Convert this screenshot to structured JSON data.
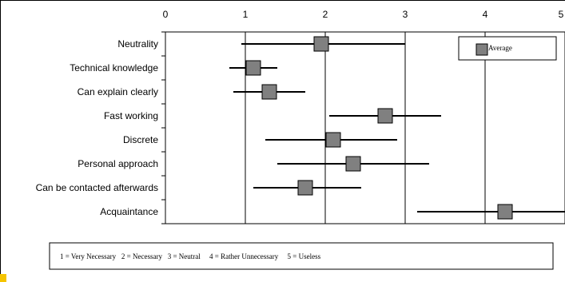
{
  "chart_data": {
    "type": "scatter",
    "subtype": "error-bar-dot-plot",
    "orientation": "horizontal",
    "categories": [
      "Neutrality",
      "Technical knowledge",
      "Can explain clearly",
      "Fast working",
      "Discrete",
      "Personal approach",
      "Can be contacted afterwards",
      "Acquaintance"
    ],
    "series": [
      {
        "name": "Average",
        "values": [
          1.95,
          1.1,
          1.3,
          2.75,
          2.1,
          2.35,
          1.75,
          4.25
        ],
        "low": [
          0.95,
          0.8,
          0.85,
          2.05,
          1.25,
          1.4,
          1.1,
          3.15
        ],
        "high": [
          3.0,
          1.4,
          1.75,
          3.45,
          2.9,
          3.3,
          2.45,
          5.0
        ]
      }
    ],
    "xlim": [
      0,
      5
    ],
    "x_ticks": [
      "0",
      "1",
      "2",
      "3",
      "4",
      "5"
    ],
    "grid": "vertical",
    "legend_position": "top-right",
    "marker_color": "#808080",
    "line_color": "#000000"
  },
  "legend": {
    "label": "Average"
  },
  "scale_note": "1 = Very Necessary   2 = Necessary   3 = Neutral     4 = Rather Unnecessary     5 = Useless"
}
